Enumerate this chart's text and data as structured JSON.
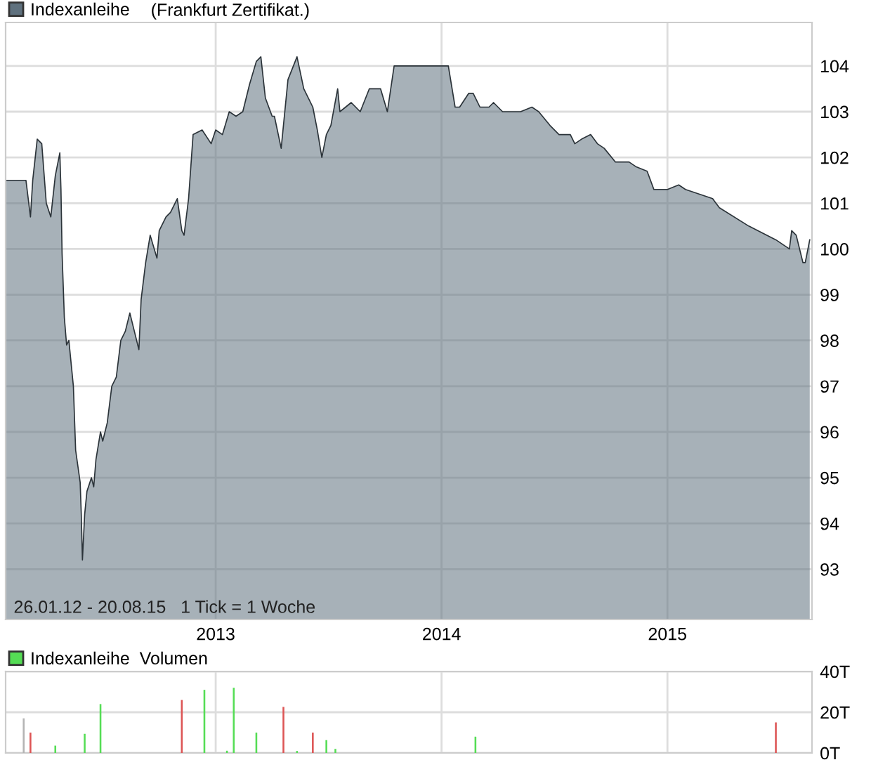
{
  "chart_data": [
    {
      "type": "area",
      "subtitle": "(Frankfurt Zertifikat.)",
      "legend": "top left",
      "grid": true,
      "xlim": [
        2012.07,
        2015.64
      ],
      "xticks": [
        2013,
        2014,
        2015
      ],
      "ylim": [
        91.9,
        104.95
      ],
      "yticks": [
        93,
        94,
        95,
        96,
        97,
        98,
        99,
        100,
        101,
        102,
        103,
        104
      ],
      "annotations": [
        "26.01.12 - 20.08.15   1 Tick = 1 Woche"
      ],
      "series": [
        {
          "name": "Indexanleihe",
          "color": "#5f717e",
          "x": [
            2012.07,
            2012.16,
            2012.18,
            2012.19,
            2012.21,
            2012.23,
            2012.25,
            2012.27,
            2012.29,
            2012.31,
            2012.315,
            2012.32,
            2012.33,
            2012.34,
            2012.35,
            2012.37,
            2012.38,
            2012.4,
            2012.405,
            2012.41,
            2012.42,
            2012.43,
            2012.45,
            2012.46,
            2012.47,
            2012.49,
            2012.5,
            2012.52,
            2012.54,
            2012.56,
            2012.58,
            2012.6,
            2012.62,
            2012.66,
            2012.67,
            2012.69,
            2012.71,
            2012.74,
            2012.75,
            2012.78,
            2012.8,
            2012.83,
            2012.85,
            2012.86,
            2012.88,
            2012.9,
            2012.94,
            2012.98,
            2013.0,
            2013.03,
            2013.06,
            2013.09,
            2013.12,
            2013.15,
            2013.18,
            2013.2,
            2013.22,
            2013.25,
            2013.26,
            2013.29,
            2013.32,
            2013.36,
            2013.39,
            2013.43,
            2013.45,
            2013.47,
            2013.49,
            2013.51,
            2013.54,
            2013.55,
            2013.6,
            2013.64,
            2013.68,
            2013.73,
            2013.76,
            2013.79,
            2014.03,
            2014.06,
            2014.08,
            2014.12,
            2014.14,
            2014.17,
            2014.21,
            2014.23,
            2014.27,
            2014.35,
            2014.4,
            2014.43,
            2014.48,
            2014.52,
            2014.57,
            2014.59,
            2014.62,
            2014.66,
            2014.69,
            2014.72,
            2014.77,
            2014.83,
            2014.86,
            2014.91,
            2014.94,
            2014.97,
            2015.0,
            2015.05,
            2015.08,
            2015.2,
            2015.23,
            2015.36,
            2015.48,
            2015.54,
            2015.55,
            2015.57,
            2015.6,
            2015.61,
            2015.63
          ],
          "values": [
            101.5,
            101.5,
            100.7,
            101.5,
            102.4,
            102.3,
            101.0,
            100.7,
            101.6,
            102.1,
            101.3,
            99.9,
            98.5,
            97.9,
            98.0,
            97.0,
            95.6,
            94.9,
            94.2,
            93.2,
            94.2,
            94.7,
            95.0,
            94.8,
            95.4,
            96.0,
            95.8,
            96.2,
            97.0,
            97.2,
            98.0,
            98.2,
            98.6,
            97.8,
            98.9,
            99.7,
            100.3,
            99.8,
            100.4,
            100.7,
            100.8,
            101.1,
            100.4,
            100.3,
            101.1,
            102.5,
            102.6,
            102.3,
            102.6,
            102.5,
            103.0,
            102.9,
            103.0,
            103.6,
            104.1,
            104.2,
            103.3,
            102.9,
            102.9,
            102.2,
            103.7,
            104.2,
            103.5,
            103.1,
            102.6,
            102.0,
            102.5,
            102.7,
            103.5,
            103.0,
            103.2,
            103.0,
            103.5,
            103.5,
            103.0,
            104.0,
            104.0,
            103.1,
            103.1,
            103.4,
            103.4,
            103.1,
            103.1,
            103.2,
            103.0,
            103.0,
            103.1,
            103.0,
            102.7,
            102.5,
            102.5,
            102.3,
            102.4,
            102.5,
            102.3,
            102.2,
            101.9,
            101.9,
            101.8,
            101.7,
            101.3,
            101.3,
            101.3,
            101.4,
            101.3,
            101.1,
            100.9,
            100.5,
            100.2,
            100.0,
            100.4,
            100.3,
            99.7,
            99.7,
            100.2
          ]
        }
      ]
    },
    {
      "type": "bar",
      "legend": "top left",
      "grid": true,
      "tick_labels": "y",
      "xlim": [
        2012.07,
        2015.64
      ],
      "xticks": [
        2013,
        2014,
        2015
      ],
      "ylim": [
        0,
        40
      ],
      "yticks": [
        {
          "value": 0,
          "label": "0T"
        },
        {
          "value": 20,
          "label": "20T"
        },
        {
          "value": 40,
          "label": "40T"
        }
      ],
      "series": [
        {
          "name": "Indexanleihe  Volumen",
          "color": "#55dd55",
          "x": [
            2012.15,
            2012.18,
            2012.29,
            2012.42,
            2012.49,
            2012.85,
            2012.95,
            2013.05,
            2013.08,
            2013.18,
            2013.3,
            2013.36,
            2013.43,
            2013.49,
            2013.53,
            2014.15,
            2015.48
          ],
          "values": [
            17,
            10,
            3.6,
            9.4,
            24,
            26,
            31,
            1.1,
            32,
            10,
            22.6,
            1,
            10,
            6.3,
            2,
            8,
            15
          ],
          "colors": [
            "#b4b4b4",
            "#dd5555",
            "#55dd55",
            "#55dd55",
            "#55dd55",
            "#dd5555",
            "#55dd55",
            "#55dd55",
            "#55dd55",
            "#55dd55",
            "#dd5555",
            "#55dd55",
            "#dd5555",
            "#55dd55",
            "#55dd55",
            "#55dd55",
            "#dd5555"
          ]
        }
      ]
    }
  ]
}
